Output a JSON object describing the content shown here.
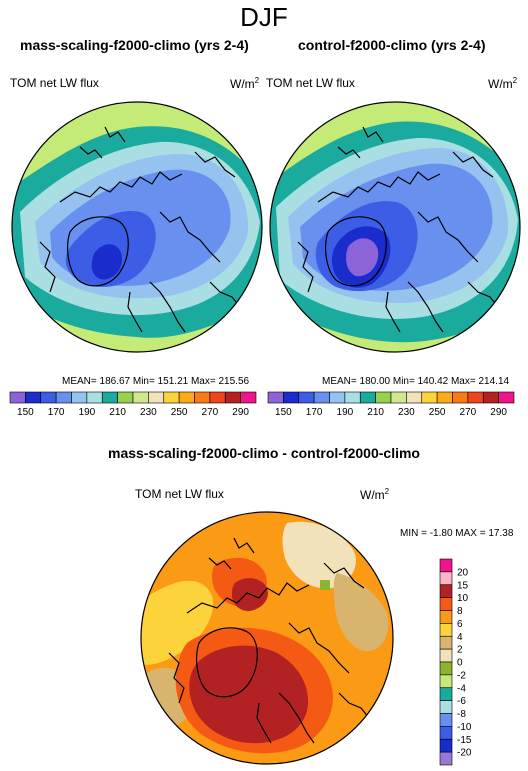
{
  "figure": {
    "season": "DJF"
  },
  "panel_left": {
    "title": "mass-scaling-f2000-climo (yrs 2-4)",
    "field": "TOM net LW flux",
    "units": "W/m",
    "units_sup": "2",
    "stats": "MEAN= 186.67  Min= 151.21  Max= 215.56"
  },
  "panel_right": {
    "title": "control-f2000-climo (yrs 2-4)",
    "field": "TOM net LW flux",
    "units": "W/m",
    "units_sup": "2",
    "stats": "MEAN= 180.00  Min= 140.42  Max= 214.14"
  },
  "panel_diff": {
    "title": "mass-scaling-f2000-climo - control-f2000-climo",
    "field": "TOM net LW flux",
    "units": "W/m",
    "units_sup": "2",
    "stats": "MIN =  -1.80 MAX =  17.38"
  },
  "colorbar_abs": {
    "colors": [
      "#8c64d8",
      "#1a2ccc",
      "#3c5ee6",
      "#6890ee",
      "#96c2f0",
      "#a9dfe3",
      "#1aaa9e",
      "#96d150",
      "#cfe890",
      "#f2e2b9",
      "#fdd33c",
      "#fdaa18",
      "#fa7a16",
      "#ee4420",
      "#b22222",
      "#f0148c"
    ],
    "labels": [
      "150",
      "170",
      "190",
      "210",
      "230",
      "250",
      "270",
      "290"
    ]
  },
  "colorbar_diff": {
    "colors": [
      "#f0148c",
      "#ffb4c8",
      "#b22222",
      "#f55a14",
      "#fb9a14",
      "#fdd33c",
      "#d9b46e",
      "#f2e2b9",
      "#8cb42c",
      "#c4ea78",
      "#1aaa9e",
      "#a9dfe3",
      "#6890ee",
      "#3c5ee6",
      "#1a2ccc",
      "#9a78d8"
    ],
    "labels": [
      "20",
      "15",
      "10",
      "8",
      "6",
      "4",
      "2",
      "0",
      "-2",
      "-4",
      "-6",
      "-8",
      "-10",
      "-15",
      "-20"
    ]
  },
  "map_colors": {
    "outer_green": "#c4ea78",
    "teal": "#1aaa9e",
    "light_blue": "#a9dfe3",
    "sky": "#96c2f0",
    "blue": "#6890ee",
    "royal": "#3c5ee6",
    "deep": "#1a2ccc",
    "purple": "#8c64d8",
    "diff_orange": "#fb9a14",
    "diff_yellow": "#fdd33c",
    "diff_red": "#f55a14",
    "diff_darkred": "#b22222",
    "diff_tan": "#d9b46e",
    "diff_beige": "#f2e2b9"
  }
}
